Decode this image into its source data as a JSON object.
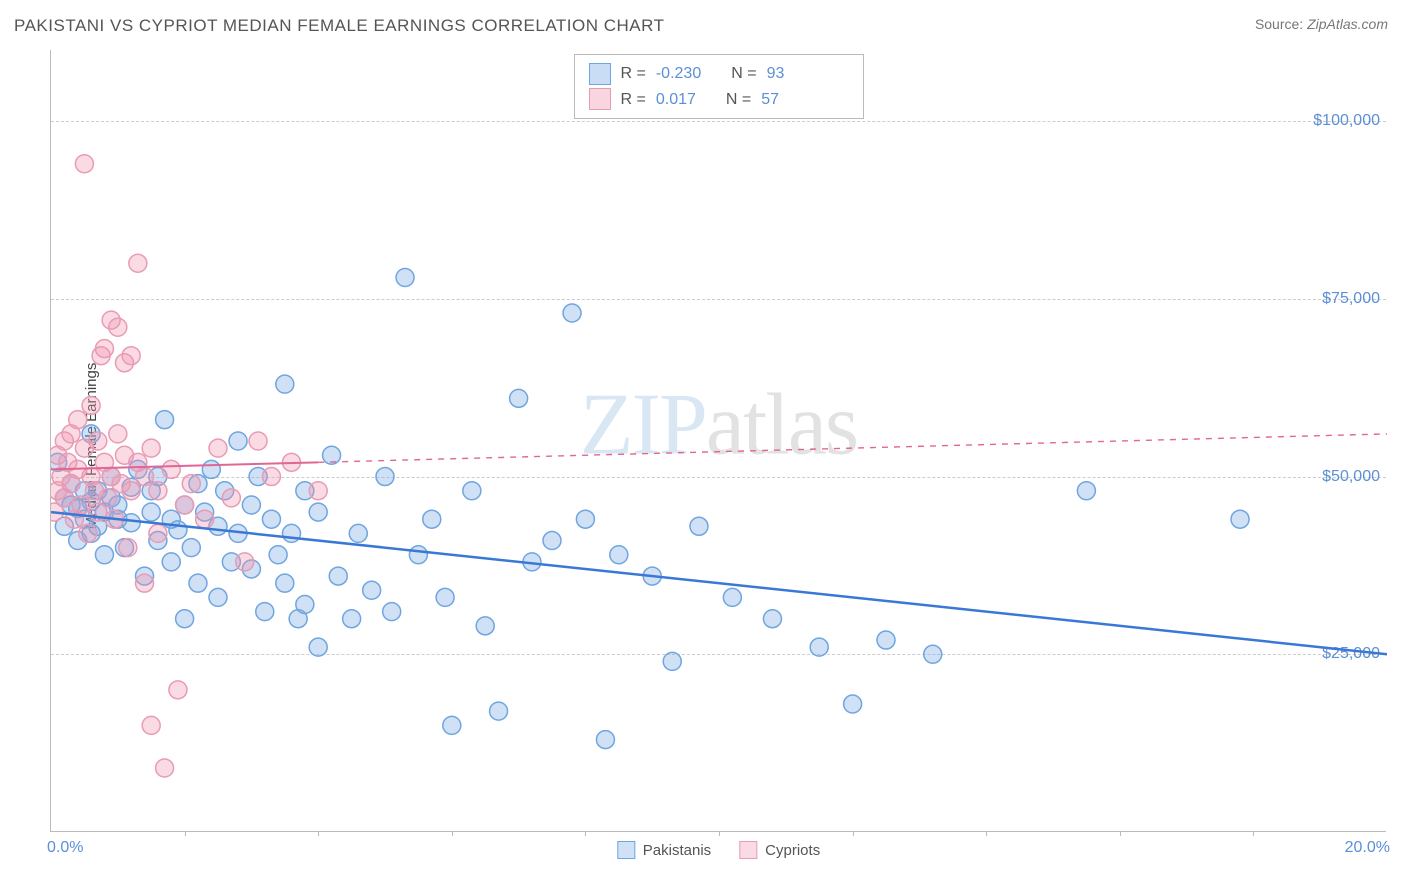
{
  "title": "PAKISTANI VS CYPRIOT MEDIAN FEMALE EARNINGS CORRELATION CHART",
  "source_label": "Source:",
  "source_value": "ZipAtlas.com",
  "y_axis_label": "Median Female Earnings",
  "watermark_part1": "ZIP",
  "watermark_part2": "atlas",
  "chart": {
    "type": "scatter",
    "xlim": [
      0,
      20
    ],
    "ylim": [
      0,
      110000
    ],
    "x_min_label": "0.0%",
    "x_max_label": "20.0%",
    "x_tick_step": 2,
    "y_ticks": [
      25000,
      50000,
      75000,
      100000
    ],
    "y_tick_labels": [
      "$25,000",
      "$50,000",
      "$75,000",
      "$100,000"
    ],
    "grid_color": "#cccccc",
    "axis_color": "#bbbbbb",
    "background_color": "#ffffff",
    "marker_radius": 9,
    "marker_stroke_width": 1.5,
    "series": [
      {
        "name": "Pakistanis",
        "fill_color": "rgba(120, 170, 230, 0.35)",
        "stroke_color": "#6fa5e0",
        "trend": {
          "x1": 0,
          "y1": 45000,
          "x2": 20,
          "y2": 25000,
          "color": "#3a78d6",
          "width": 2.5,
          "dash_after_x": null
        },
        "points": [
          [
            0.1,
            52000
          ],
          [
            0.2,
            47000
          ],
          [
            0.2,
            43000
          ],
          [
            0.3,
            46000
          ],
          [
            0.3,
            49000
          ],
          [
            0.4,
            45500
          ],
          [
            0.4,
            41000
          ],
          [
            0.5,
            44000
          ],
          [
            0.5,
            48000
          ],
          [
            0.6,
            46500
          ],
          [
            0.6,
            42000
          ],
          [
            0.6,
            56000
          ],
          [
            0.7,
            43000
          ],
          [
            0.7,
            48000
          ],
          [
            0.8,
            45000
          ],
          [
            0.8,
            39000
          ],
          [
            0.9,
            47000
          ],
          [
            0.9,
            50000
          ],
          [
            1.0,
            44000
          ],
          [
            1.0,
            46000
          ],
          [
            1.1,
            40000
          ],
          [
            1.2,
            48500
          ],
          [
            1.2,
            43500
          ],
          [
            1.3,
            51000
          ],
          [
            1.4,
            36000
          ],
          [
            1.5,
            45000
          ],
          [
            1.5,
            48000
          ],
          [
            1.6,
            41000
          ],
          [
            1.6,
            50000
          ],
          [
            1.7,
            58000
          ],
          [
            1.8,
            44000
          ],
          [
            1.8,
            38000
          ],
          [
            1.9,
            42500
          ],
          [
            2.0,
            46000
          ],
          [
            2.0,
            30000
          ],
          [
            2.1,
            40000
          ],
          [
            2.2,
            49000
          ],
          [
            2.2,
            35000
          ],
          [
            2.3,
            45000
          ],
          [
            2.4,
            51000
          ],
          [
            2.5,
            43000
          ],
          [
            2.5,
            33000
          ],
          [
            2.6,
            48000
          ],
          [
            2.7,
            38000
          ],
          [
            2.8,
            55000
          ],
          [
            2.8,
            42000
          ],
          [
            3.0,
            46000
          ],
          [
            3.0,
            37000
          ],
          [
            3.1,
            50000
          ],
          [
            3.2,
            31000
          ],
          [
            3.3,
            44000
          ],
          [
            3.4,
            39000
          ],
          [
            3.5,
            63000
          ],
          [
            3.5,
            35000
          ],
          [
            3.6,
            42000
          ],
          [
            3.7,
            30000
          ],
          [
            3.8,
            48000
          ],
          [
            3.8,
            32000
          ],
          [
            4.0,
            45000
          ],
          [
            4.0,
            26000
          ],
          [
            4.2,
            53000
          ],
          [
            4.3,
            36000
          ],
          [
            4.5,
            30000
          ],
          [
            4.6,
            42000
          ],
          [
            4.8,
            34000
          ],
          [
            5.0,
            50000
          ],
          [
            5.1,
            31000
          ],
          [
            5.3,
            78000
          ],
          [
            5.5,
            39000
          ],
          [
            5.7,
            44000
          ],
          [
            5.9,
            33000
          ],
          [
            6.0,
            15000
          ],
          [
            6.3,
            48000
          ],
          [
            6.5,
            29000
          ],
          [
            6.7,
            17000
          ],
          [
            7.0,
            61000
          ],
          [
            7.2,
            38000
          ],
          [
            7.5,
            41000
          ],
          [
            7.8,
            73000
          ],
          [
            8.0,
            44000
          ],
          [
            8.3,
            13000
          ],
          [
            8.5,
            39000
          ],
          [
            9.0,
            36000
          ],
          [
            9.3,
            24000
          ],
          [
            9.7,
            43000
          ],
          [
            10.2,
            33000
          ],
          [
            10.8,
            30000
          ],
          [
            11.5,
            26000
          ],
          [
            12.0,
            18000
          ],
          [
            12.5,
            27000
          ],
          [
            13.2,
            25000
          ],
          [
            15.5,
            48000
          ],
          [
            17.8,
            44000
          ]
        ]
      },
      {
        "name": "Cypriots",
        "fill_color": "rgba(240, 150, 175, 0.35)",
        "stroke_color": "#e89bb5",
        "trend": {
          "x1": 0,
          "y1": 51000,
          "x2": 20,
          "y2": 56000,
          "color": "#e06695",
          "width": 2,
          "dash_after_x": 4
        },
        "points": [
          [
            0.05,
            45000
          ],
          [
            0.1,
            48000
          ],
          [
            0.1,
            53000
          ],
          [
            0.15,
            50000
          ],
          [
            0.2,
            55000
          ],
          [
            0.2,
            47000
          ],
          [
            0.25,
            52000
          ],
          [
            0.3,
            56000
          ],
          [
            0.3,
            49000
          ],
          [
            0.35,
            44000
          ],
          [
            0.4,
            58000
          ],
          [
            0.4,
            51000
          ],
          [
            0.45,
            46000
          ],
          [
            0.5,
            94000
          ],
          [
            0.5,
            54000
          ],
          [
            0.55,
            42000
          ],
          [
            0.6,
            50000
          ],
          [
            0.6,
            60000
          ],
          [
            0.65,
            48000
          ],
          [
            0.7,
            55000
          ],
          [
            0.7,
            45000
          ],
          [
            0.75,
            67000
          ],
          [
            0.8,
            68000
          ],
          [
            0.8,
            52000
          ],
          [
            0.85,
            47000
          ],
          [
            0.9,
            72000
          ],
          [
            0.9,
            50000
          ],
          [
            0.95,
            44000
          ],
          [
            1.0,
            71000
          ],
          [
            1.0,
            56000
          ],
          [
            1.05,
            49000
          ],
          [
            1.1,
            66000
          ],
          [
            1.1,
            53000
          ],
          [
            1.15,
            40000
          ],
          [
            1.2,
            67000
          ],
          [
            1.2,
            48000
          ],
          [
            1.3,
            52000
          ],
          [
            1.3,
            80000
          ],
          [
            1.4,
            50000
          ],
          [
            1.4,
            35000
          ],
          [
            1.5,
            54000
          ],
          [
            1.5,
            15000
          ],
          [
            1.6,
            48000
          ],
          [
            1.6,
            42000
          ],
          [
            1.7,
            9000
          ],
          [
            1.8,
            51000
          ],
          [
            1.9,
            20000
          ],
          [
            2.0,
            46000
          ],
          [
            2.1,
            49000
          ],
          [
            2.3,
            44000
          ],
          [
            2.5,
            54000
          ],
          [
            2.7,
            47000
          ],
          [
            2.9,
            38000
          ],
          [
            3.1,
            55000
          ],
          [
            3.3,
            50000
          ],
          [
            3.6,
            52000
          ],
          [
            4.0,
            48000
          ]
        ]
      }
    ],
    "correlation_box": {
      "rows": [
        {
          "swatch_fill": "rgba(120, 170, 230, 0.4)",
          "swatch_stroke": "#6fa5e0",
          "r": "-0.230",
          "n": "93"
        },
        {
          "swatch_fill": "rgba(240, 150, 175, 0.4)",
          "swatch_stroke": "#e89bb5",
          "r": "0.017",
          "n": "57"
        }
      ],
      "r_label": "R =",
      "n_label": "N ="
    },
    "value_color": "#5b8fd6",
    "text_color": "#555555"
  }
}
